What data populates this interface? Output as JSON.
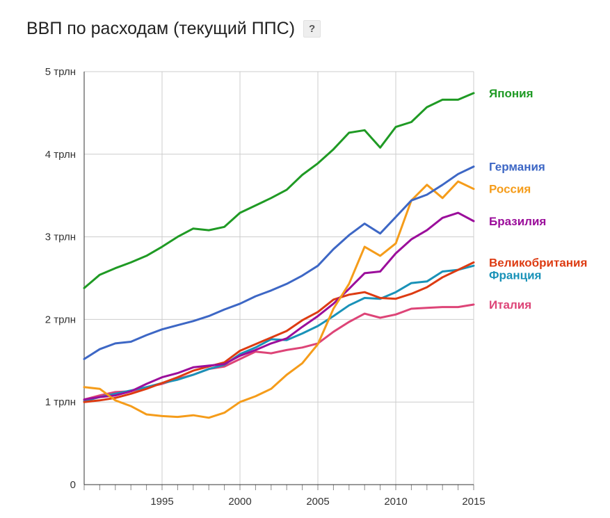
{
  "header": {
    "title": "ВВП по расходам (текущий ППС)",
    "help_label": "?"
  },
  "chart_data": {
    "type": "line",
    "title": "ВВП по расходам (текущий ППС)",
    "xlabel": "",
    "ylabel": "",
    "xlim": [
      1990,
      2015
    ],
    "ylim": [
      0,
      5
    ],
    "grid": true,
    "legend_placement": "right (labels at line ends)",
    "y_ticks": [
      {
        "value": 0,
        "label": "0"
      },
      {
        "value": 1,
        "label": "1 трлн"
      },
      {
        "value": 2,
        "label": "2 трлн"
      },
      {
        "value": 3,
        "label": "3 трлн"
      },
      {
        "value": 4,
        "label": "4 трлн"
      },
      {
        "value": 5,
        "label": "5 трлн"
      }
    ],
    "x_ticks": [
      {
        "value": 1995,
        "label": "1995"
      },
      {
        "value": 2000,
        "label": "2000"
      },
      {
        "value": 2005,
        "label": "2005"
      },
      {
        "value": 2010,
        "label": "2010"
      },
      {
        "value": 2015,
        "label": "2015"
      }
    ],
    "x": [
      1990,
      1991,
      1992,
      1993,
      1994,
      1995,
      1996,
      1997,
      1998,
      1999,
      2000,
      2001,
      2002,
      2003,
      2004,
      2005,
      2006,
      2007,
      2008,
      2009,
      2010,
      2011,
      2012,
      2013,
      2014,
      2015
    ],
    "series": [
      {
        "name": "Япония",
        "color": "#1f9a24",
        "values": [
          2.38,
          2.54,
          2.62,
          2.69,
          2.77,
          2.88,
          3.0,
          3.1,
          3.08,
          3.12,
          3.29,
          3.38,
          3.47,
          3.57,
          3.75,
          3.89,
          4.06,
          4.26,
          4.29,
          4.08,
          4.33,
          4.39,
          4.57,
          4.66,
          4.66,
          4.74
        ]
      },
      {
        "name": "Германия",
        "color": "#3d67c5",
        "values": [
          1.52,
          1.64,
          1.71,
          1.73,
          1.81,
          1.88,
          1.93,
          1.98,
          2.04,
          2.12,
          2.19,
          2.28,
          2.35,
          2.43,
          2.53,
          2.65,
          2.85,
          3.02,
          3.16,
          3.04,
          3.24,
          3.44,
          3.51,
          3.63,
          3.76,
          3.85
        ]
      },
      {
        "name": "Россия",
        "color": "#f59c1a",
        "values": [
          1.18,
          1.16,
          1.02,
          0.95,
          0.85,
          0.83,
          0.82,
          0.84,
          0.81,
          0.87,
          1.0,
          1.07,
          1.16,
          1.33,
          1.47,
          1.7,
          2.13,
          2.43,
          2.88,
          2.77,
          2.92,
          3.44,
          3.63,
          3.47,
          3.67,
          3.58
        ]
      },
      {
        "name": "Бразилия",
        "color": "#9b0e9b",
        "values": [
          1.03,
          1.06,
          1.08,
          1.13,
          1.22,
          1.3,
          1.35,
          1.42,
          1.44,
          1.46,
          1.56,
          1.63,
          1.71,
          1.77,
          1.91,
          2.04,
          2.19,
          2.37,
          2.56,
          2.58,
          2.8,
          2.97,
          3.08,
          3.23,
          3.29,
          3.19
        ]
      },
      {
        "name": "Великобритания",
        "color": "#dd3b12",
        "values": [
          1.0,
          1.02,
          1.05,
          1.1,
          1.16,
          1.23,
          1.3,
          1.38,
          1.43,
          1.48,
          1.62,
          1.7,
          1.78,
          1.86,
          1.99,
          2.09,
          2.24,
          2.3,
          2.33,
          2.26,
          2.25,
          2.31,
          2.39,
          2.51,
          2.6,
          2.69
        ]
      },
      {
        "name": "Франция",
        "color": "#1992b8",
        "values": [
          1.01,
          1.06,
          1.1,
          1.14,
          1.18,
          1.23,
          1.27,
          1.33,
          1.4,
          1.45,
          1.58,
          1.66,
          1.76,
          1.75,
          1.83,
          1.92,
          2.04,
          2.17,
          2.26,
          2.25,
          2.33,
          2.44,
          2.46,
          2.58,
          2.6,
          2.65
        ]
      },
      {
        "name": "Италия",
        "color": "#dd4477",
        "values": [
          1.03,
          1.08,
          1.12,
          1.13,
          1.18,
          1.22,
          1.28,
          1.33,
          1.4,
          1.43,
          1.52,
          1.61,
          1.59,
          1.63,
          1.66,
          1.71,
          1.85,
          1.97,
          2.07,
          2.02,
          2.06,
          2.13,
          2.14,
          2.15,
          2.15,
          2.18
        ]
      }
    ]
  }
}
